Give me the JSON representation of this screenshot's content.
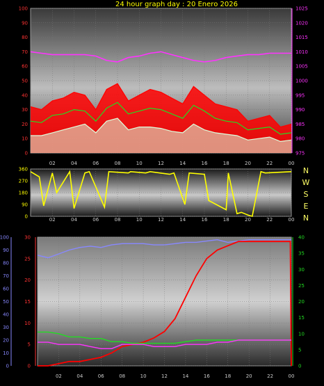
{
  "title": "24 hour graph day : 20 Enero 2026",
  "colors": {
    "red": "#ff0000",
    "green": "#22dd22",
    "white": "#ddffdd",
    "magenta": "#ff33ff",
    "yellow": "#ffff00",
    "blue": "#8888ff",
    "tick_left": "#ff3333",
    "tick_right": "#ff33ff",
    "tick_green": "#22dd22",
    "tick_blue": "#8888ff"
  },
  "time_ticks": [
    "02",
    "04",
    "06",
    "08",
    "10",
    "12",
    "14",
    "16",
    "18",
    "20",
    "22",
    "00"
  ],
  "compass": [
    "N",
    "W",
    "S",
    "E",
    "N"
  ],
  "chart_data": [
    {
      "type": "line",
      "name": "wind-and-pressure",
      "xlim": [
        0,
        24
      ],
      "ylim_left": [
        0,
        100
      ],
      "ylim_right": [
        975,
        1025
      ],
      "left_ticks": [
        "0",
        "10",
        "20",
        "30",
        "40",
        "50",
        "60",
        "70",
        "80",
        "90",
        "100"
      ],
      "right_ticks": [
        "975",
        "980",
        "985",
        "990",
        "995",
        "1000",
        "1005",
        "1010",
        "1015",
        "1020",
        "1025"
      ],
      "series": [
        {
          "color": "red",
          "axis": "left",
          "fill": true,
          "x": [
            0,
            1,
            2,
            3,
            4,
            5,
            6,
            7,
            8,
            9,
            10,
            11,
            12,
            13,
            14,
            15,
            16,
            17,
            18,
            19,
            20,
            21,
            22,
            23,
            24
          ],
          "y": [
            32,
            30,
            36,
            38,
            42,
            40,
            30,
            44,
            48,
            36,
            40,
            44,
            42,
            38,
            34,
            46,
            40,
            34,
            32,
            30,
            22,
            24,
            26,
            18,
            20
          ]
        },
        {
          "color": "green",
          "axis": "left",
          "x": [
            0,
            1,
            2,
            3,
            4,
            5,
            6,
            7,
            8,
            9,
            10,
            11,
            12,
            13,
            14,
            15,
            16,
            17,
            18,
            19,
            20,
            21,
            22,
            23,
            24
          ],
          "y": [
            22,
            21,
            26,
            27,
            30,
            29,
            22,
            31,
            35,
            27,
            29,
            31,
            30,
            27,
            24,
            33,
            29,
            24,
            22,
            21,
            16,
            17,
            18,
            13,
            14
          ]
        },
        {
          "color": "white",
          "axis": "left",
          "fill": true,
          "x": [
            0,
            1,
            2,
            3,
            4,
            5,
            6,
            7,
            8,
            9,
            10,
            11,
            12,
            13,
            14,
            15,
            16,
            17,
            18,
            19,
            20,
            21,
            22,
            23,
            24
          ],
          "y": [
            12,
            12,
            14,
            16,
            18,
            20,
            14,
            22,
            24,
            16,
            18,
            18,
            17,
            15,
            14,
            20,
            16,
            14,
            13,
            12,
            9,
            10,
            11,
            8,
            9
          ]
        },
        {
          "color": "magenta",
          "axis": "right",
          "x": [
            0,
            1,
            2,
            3,
            4,
            5,
            6,
            7,
            8,
            9,
            10,
            11,
            12,
            13,
            14,
            15,
            16,
            17,
            18,
            19,
            20,
            21,
            22,
            23,
            24
          ],
          "y": [
            1010,
            1009.5,
            1009,
            1009,
            1009,
            1009,
            1008.5,
            1007,
            1006.5,
            1008,
            1008.5,
            1009.5,
            1010,
            1009,
            1008,
            1007,
            1006.5,
            1007,
            1008,
            1008.5,
            1009,
            1009,
            1009.5,
            1009.5,
            1009.5
          ]
        }
      ]
    },
    {
      "type": "line",
      "name": "wind-direction",
      "xlim": [
        0,
        24
      ],
      "ylim": [
        0,
        360
      ],
      "left_ticks": [
        "0",
        "90",
        "180",
        "270",
        "360"
      ],
      "series": [
        {
          "color": "yellow",
          "x": [
            0,
            0.8,
            1.2,
            2.0,
            2.4,
            3.6,
            4.0,
            5.0,
            5.4,
            6.8,
            7.2,
            9.0,
            9.2,
            10.6,
            11.0,
            12.8,
            13.2,
            14.2,
            14.6,
            16.0,
            16.4,
            18.0,
            18.2,
            19.0,
            19.4,
            20.0,
            20.4,
            21.2,
            21.6,
            24.0
          ],
          "y": [
            340,
            300,
            80,
            330,
            180,
            340,
            60,
            330,
            340,
            70,
            340,
            330,
            340,
            330,
            340,
            320,
            330,
            90,
            330,
            320,
            120,
            50,
            330,
            20,
            30,
            10,
            0,
            340,
            330,
            340
          ]
        }
      ]
    },
    {
      "type": "line",
      "name": "temperature-humidity-solar",
      "xlim": [
        0,
        24
      ],
      "left_ticks": [
        "0",
        "10",
        "20",
        "30",
        "40",
        "50",
        "60",
        "70",
        "80",
        "90",
        "100"
      ],
      "red_ticks": [
        "0",
        "5",
        "10",
        "15",
        "20",
        "25",
        "30"
      ],
      "right_ticks": [
        "0",
        "5",
        "10",
        "15",
        "20",
        "25",
        "30",
        "35",
        "40"
      ],
      "series": [
        {
          "color": "blue",
          "axis": "left",
          "ylim": [
            0,
            100
          ],
          "x": [
            0,
            1,
            2,
            3,
            4,
            5,
            6,
            7,
            8,
            9,
            10,
            11,
            12,
            13,
            14,
            15,
            16,
            17,
            18,
            19,
            20,
            21,
            22,
            23,
            24
          ],
          "y": [
            86,
            84,
            87,
            90,
            92,
            93,
            92,
            94,
            95,
            95,
            95,
            94,
            94,
            95,
            96,
            96,
            97,
            98,
            96,
            97,
            98,
            98,
            98,
            98,
            98
          ]
        },
        {
          "color": "red",
          "axis": "red",
          "ylim": [
            0,
            30
          ],
          "x": [
            0,
            1,
            2,
            3,
            4,
            5,
            6,
            7,
            8,
            9,
            10,
            11,
            12,
            13,
            14,
            15,
            16,
            17,
            18,
            19,
            20,
            21,
            22,
            23,
            23.9,
            24
          ],
          "y": [
            0,
            0,
            0.5,
            1,
            1,
            1.5,
            2,
            3,
            4.5,
            5,
            5.5,
            6.5,
            8,
            11,
            16,
            21,
            25,
            27,
            28,
            29,
            29,
            29,
            29,
            29,
            29,
            0
          ]
        },
        {
          "color": "green",
          "axis": "right",
          "ylim": [
            0,
            40
          ],
          "x": [
            0,
            1,
            2,
            3,
            4,
            5,
            6,
            7,
            8,
            9,
            10,
            11,
            12,
            13,
            14,
            15,
            16,
            17,
            18,
            19,
            20,
            21,
            22,
            23,
            24
          ],
          "y": [
            10.5,
            10.5,
            10,
            9,
            9,
            8.5,
            8.5,
            7.5,
            7.5,
            7,
            7,
            7,
            7,
            7,
            7.5,
            8,
            8,
            8,
            8,
            8,
            8,
            8,
            8,
            8,
            8
          ]
        },
        {
          "color": "magenta",
          "axis": "red",
          "ylim": [
            0,
            30
          ],
          "x": [
            0,
            1,
            2,
            3,
            4,
            5,
            6,
            7,
            8,
            9,
            10,
            11,
            12,
            13,
            14,
            15,
            16,
            17,
            18,
            19,
            20,
            21,
            22,
            23,
            24
          ],
          "y": [
            5.5,
            5.5,
            5,
            5,
            5,
            4.5,
            4,
            4,
            5,
            5,
            5,
            4.5,
            4.5,
            4.5,
            5,
            5,
            5,
            5.5,
            5.5,
            6,
            6,
            6,
            6,
            6,
            6
          ]
        }
      ]
    }
  ]
}
